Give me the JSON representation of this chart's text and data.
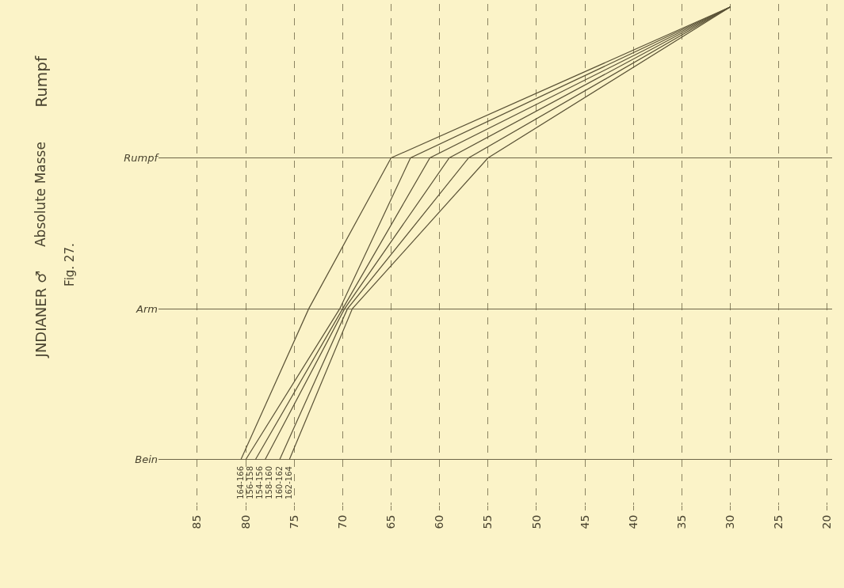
{
  "chart_data": {
    "type": "line",
    "orientation": "horizontal",
    "title": "JNDIANER ♂",
    "subtitle": "Absolute Masse",
    "annotations": [
      "Fig. 27.",
      "Rumpf"
    ],
    "categories": [
      null,
      "Rumpf",
      "Arm",
      "Bein"
    ],
    "series": [
      {
        "name": "164-166",
        "color": "#5a5236",
        "values": [
          30,
          65,
          73.5,
          80.5
        ]
      },
      {
        "name": "156-158",
        "color": "#5a5236",
        "values": [
          30,
          63,
          70.3,
          80
        ]
      },
      {
        "name": "154-156",
        "color": "#5a5236",
        "values": [
          30,
          61,
          70,
          79
        ]
      },
      {
        "name": "158-160",
        "color": "#5a5236",
        "values": [
          30,
          59,
          69.8,
          78
        ]
      },
      {
        "name": "160-162",
        "color": "#5a5236",
        "values": [
          30,
          57,
          69.5,
          76.5
        ]
      },
      {
        "name": "162-164",
        "color": "#5a5236",
        "values": [
          30,
          55,
          69,
          75.5
        ]
      }
    ],
    "xlim": [
      89,
      19.5
    ],
    "xticks": [
      85,
      80,
      75,
      70,
      65,
      60,
      55,
      50,
      45,
      40,
      35,
      30,
      25,
      20
    ],
    "grid": true,
    "legend": false,
    "marker": "none",
    "line_style": "solid"
  }
}
